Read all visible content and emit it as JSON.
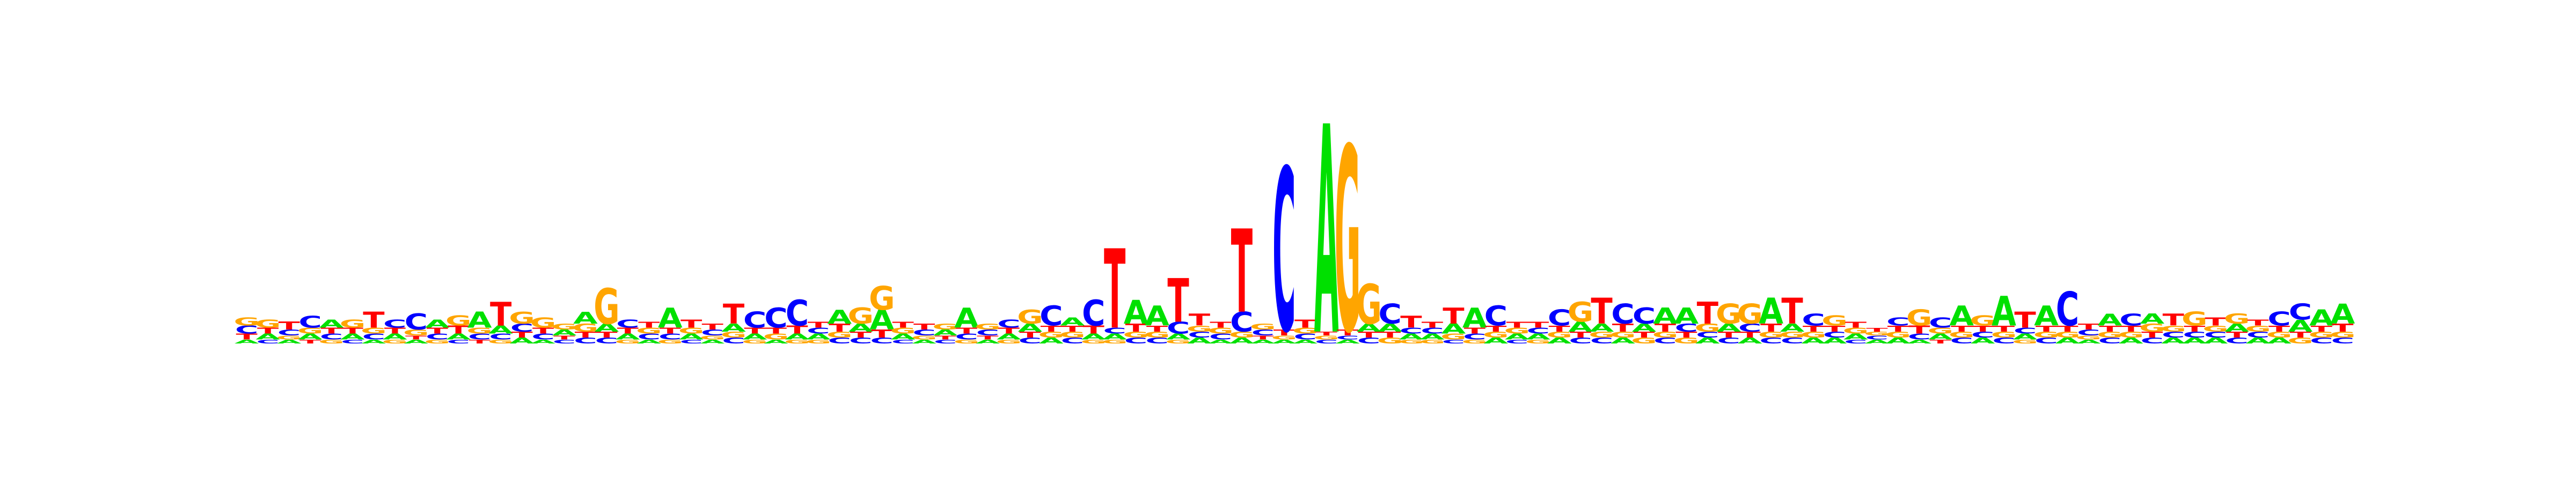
{
  "colors": {
    "A": "#00e000",
    "C": "#0000ff",
    "G": "#ffa500",
    "T": "#ff0000"
  },
  "chart_data": {
    "type": "sequence-logo",
    "alphabet": [
      "A",
      "C",
      "G",
      "T"
    ],
    "ylim": [
      0,
      2
    ],
    "positions": [
      {
        "A": 0.02,
        "C": 0.04,
        "G": 0.04,
        "T": 0.03
      },
      {
        "A": 0.03,
        "C": 0.02,
        "G": 0.04,
        "T": 0.03
      },
      {
        "A": 0.02,
        "C": 0.03,
        "G": 0.02,
        "T": 0.04
      },
      {
        "A": 0.03,
        "C": 0.06,
        "G": 0.03,
        "T": 0.02
      },
      {
        "A": 0.04,
        "C": 0.03,
        "G": 0.02,
        "T": 0.03
      },
      {
        "A": 0.03,
        "C": 0.02,
        "G": 0.04,
        "T": 0.03
      },
      {
        "A": 0.02,
        "C": 0.03,
        "G": 0.03,
        "T": 0.08
      },
      {
        "A": 0.03,
        "C": 0.04,
        "G": 0.02,
        "T": 0.03
      },
      {
        "A": 0.02,
        "C": 0.08,
        "G": 0.03,
        "T": 0.02
      },
      {
        "A": 0.04,
        "C": 0.03,
        "G": 0.02,
        "T": 0.03
      },
      {
        "A": 0.03,
        "C": 0.02,
        "G": 0.05,
        "T": 0.04
      },
      {
        "A": 0.08,
        "C": 0.03,
        "G": 0.03,
        "T": 0.02
      },
      {
        "A": 0.04,
        "C": 0.03,
        "G": 0.02,
        "T": 0.12
      },
      {
        "A": 0.03,
        "C": 0.04,
        "G": 0.06,
        "T": 0.03
      },
      {
        "A": 0.02,
        "C": 0.03,
        "G": 0.05,
        "T": 0.03
      },
      {
        "A": 0.03,
        "C": 0.02,
        "G": 0.03,
        "T": 0.02
      },
      {
        "A": 0.06,
        "C": 0.03,
        "G": 0.04,
        "T": 0.03
      },
      {
        "A": 0.04,
        "C": 0.03,
        "G": 0.18,
        "T": 0.03
      },
      {
        "A": 0.03,
        "C": 0.04,
        "G": 0.02,
        "T": 0.03
      },
      {
        "A": 0.02,
        "C": 0.03,
        "G": 0.03,
        "T": 0.03
      },
      {
        "A": 0.1,
        "C": 0.03,
        "G": 0.02,
        "T": 0.03
      },
      {
        "A": 0.03,
        "C": 0.02,
        "G": 0.03,
        "T": 0.04
      },
      {
        "A": 0.02,
        "C": 0.03,
        "G": 0.02,
        "T": 0.03
      },
      {
        "A": 0.04,
        "C": 0.03,
        "G": 0.03,
        "T": 0.1
      },
      {
        "A": 0.03,
        "C": 0.08,
        "G": 0.02,
        "T": 0.03
      },
      {
        "A": 0.02,
        "C": 0.1,
        "G": 0.03,
        "T": 0.03
      },
      {
        "A": 0.03,
        "C": 0.13,
        "G": 0.02,
        "T": 0.04
      },
      {
        "A": 0.03,
        "C": 0.03,
        "G": 0.02,
        "T": 0.03
      },
      {
        "A": 0.07,
        "C": 0.03,
        "G": 0.03,
        "T": 0.04
      },
      {
        "A": 0.04,
        "C": 0.03,
        "G": 0.08,
        "T": 0.03
      },
      {
        "A": 0.1,
        "C": 0.03,
        "G": 0.12,
        "T": 0.04
      },
      {
        "A": 0.03,
        "C": 0.02,
        "G": 0.03,
        "T": 0.03
      },
      {
        "A": 0.02,
        "C": 0.03,
        "G": 0.02,
        "T": 0.03
      },
      {
        "A": 0.03,
        "C": 0.02,
        "G": 0.03,
        "T": 0.02
      },
      {
        "A": 0.1,
        "C": 0.03,
        "G": 0.02,
        "T": 0.03
      },
      {
        "A": 0.02,
        "C": 0.03,
        "G": 0.03,
        "T": 0.02
      },
      {
        "A": 0.03,
        "C": 0.04,
        "G": 0.02,
        "T": 0.03
      },
      {
        "A": 0.04,
        "C": 0.03,
        "G": 0.07,
        "T": 0.03
      },
      {
        "A": 0.03,
        "C": 0.1,
        "G": 0.03,
        "T": 0.03
      },
      {
        "A": 0.04,
        "C": 0.03,
        "G": 0.03,
        "T": 0.03
      },
      {
        "A": 0.03,
        "C": 0.13,
        "G": 0.02,
        "T": 0.04
      },
      {
        "A": 0.03,
        "C": 0.03,
        "G": 0.02,
        "T": 0.4
      },
      {
        "A": 0.12,
        "C": 0.03,
        "G": 0.03,
        "T": 0.04
      },
      {
        "A": 0.1,
        "C": 0.03,
        "G": 0.03,
        "T": 0.03
      },
      {
        "A": 0.03,
        "C": 0.06,
        "G": 0.02,
        "T": 0.22
      },
      {
        "A": 0.03,
        "C": 0.03,
        "G": 0.03,
        "T": 0.06
      },
      {
        "A": 0.02,
        "C": 0.03,
        "G": 0.03,
        "T": 0.03
      },
      {
        "A": 0.03,
        "C": 0.1,
        "G": 0.03,
        "T": 0.42
      },
      {
        "A": 0.02,
        "C": 0.03,
        "G": 0.03,
        "T": 0.02
      },
      {
        "A": 0.02,
        "C": 0.82,
        "G": 0.02,
        "T": 0.03
      },
      {
        "A": 0.02,
        "C": 0.03,
        "G": 0.03,
        "T": 0.04
      },
      {
        "A": 1.05,
        "C": 0.02,
        "G": 0.02,
        "T": 0.02
      },
      {
        "A": 0.02,
        "C": 0.02,
        "G": 0.93,
        "T": 0.03
      },
      {
        "A": 0.04,
        "C": 0.03,
        "G": 0.2,
        "T": 0.03
      },
      {
        "A": 0.04,
        "C": 0.1,
        "G": 0.03,
        "T": 0.03
      },
      {
        "A": 0.03,
        "C": 0.03,
        "G": 0.02,
        "T": 0.06
      },
      {
        "A": 0.03,
        "C": 0.03,
        "G": 0.02,
        "T": 0.03
      },
      {
        "A": 0.05,
        "C": 0.02,
        "G": 0.03,
        "T": 0.08
      },
      {
        "A": 0.1,
        "C": 0.03,
        "G": 0.02,
        "T": 0.03
      },
      {
        "A": 0.03,
        "C": 0.1,
        "G": 0.03,
        "T": 0.03
      },
      {
        "A": 0.03,
        "C": 0.02,
        "G": 0.03,
        "T": 0.03
      },
      {
        "A": 0.03,
        "C": 0.03,
        "G": 0.02,
        "T": 0.03
      },
      {
        "A": 0.03,
        "C": 0.08,
        "G": 0.03,
        "T": 0.03
      },
      {
        "A": 0.05,
        "C": 0.03,
        "G": 0.1,
        "T": 0.03
      },
      {
        "A": 0.04,
        "C": 0.03,
        "G": 0.03,
        "T": 0.13
      },
      {
        "A": 0.03,
        "C": 0.1,
        "G": 0.03,
        "T": 0.04
      },
      {
        "A": 0.04,
        "C": 0.08,
        "G": 0.03,
        "T": 0.03
      },
      {
        "A": 0.08,
        "C": 0.03,
        "G": 0.03,
        "T": 0.04
      },
      {
        "A": 0.08,
        "C": 0.04,
        "G": 0.03,
        "T": 0.03
      },
      {
        "A": 0.03,
        "C": 0.03,
        "G": 0.04,
        "T": 0.11
      },
      {
        "A": 0.04,
        "C": 0.03,
        "G": 0.1,
        "T": 0.03
      },
      {
        "A": 0.03,
        "C": 0.04,
        "G": 0.1,
        "T": 0.03
      },
      {
        "A": 0.13,
        "C": 0.03,
        "G": 0.03,
        "T": 0.04
      },
      {
        "A": 0.04,
        "C": 0.03,
        "G": 0.03,
        "T": 0.13
      },
      {
        "A": 0.03,
        "C": 0.06,
        "G": 0.03,
        "T": 0.03
      },
      {
        "A": 0.03,
        "C": 0.03,
        "G": 0.05,
        "T": 0.03
      },
      {
        "A": 0.03,
        "C": 0.02,
        "G": 0.03,
        "T": 0.03
      },
      {
        "A": 0.02,
        "C": 0.02,
        "G": 0.02,
        "T": 0.02
      },
      {
        "A": 0.03,
        "C": 0.04,
        "G": 0.03,
        "T": 0.03
      },
      {
        "A": 0.02,
        "C": 0.03,
        "G": 0.08,
        "T": 0.04
      },
      {
        "A": 0.03,
        "C": 0.05,
        "G": 0.03,
        "T": 0.02
      },
      {
        "A": 0.1,
        "C": 0.03,
        "G": 0.03,
        "T": 0.03
      },
      {
        "A": 0.03,
        "C": 0.03,
        "G": 0.05,
        "T": 0.03
      },
      {
        "A": 0.15,
        "C": 0.03,
        "G": 0.03,
        "T": 0.03
      },
      {
        "A": 0.03,
        "C": 0.03,
        "G": 0.02,
        "T": 0.08
      },
      {
        "A": 0.1,
        "C": 0.03,
        "G": 0.03,
        "T": 0.03
      },
      {
        "A": 0.03,
        "C": 0.17,
        "G": 0.03,
        "T": 0.03
      },
      {
        "A": 0.02,
        "C": 0.03,
        "G": 0.02,
        "T": 0.03
      },
      {
        "A": 0.06,
        "C": 0.03,
        "G": 0.03,
        "T": 0.03
      },
      {
        "A": 0.03,
        "C": 0.06,
        "G": 0.03,
        "T": 0.03
      },
      {
        "A": 0.05,
        "C": 0.03,
        "G": 0.04,
        "T": 0.03
      },
      {
        "A": 0.03,
        "C": 0.03,
        "G": 0.03,
        "T": 0.06
      },
      {
        "A": 0.03,
        "C": 0.03,
        "G": 0.07,
        "T": 0.03
      },
      {
        "A": 0.03,
        "C": 0.03,
        "G": 0.03,
        "T": 0.04
      },
      {
        "A": 0.04,
        "C": 0.03,
        "G": 0.05,
        "T": 0.03
      },
      {
        "A": 0.03,
        "C": 0.03,
        "G": 0.03,
        "T": 0.03
      },
      {
        "A": 0.03,
        "C": 0.07,
        "G": 0.03,
        "T": 0.03
      },
      {
        "A": 0.06,
        "C": 0.08,
        "G": 0.03,
        "T": 0.03
      },
      {
        "A": 0.08,
        "C": 0.03,
        "G": 0.03,
        "T": 0.03
      },
      {
        "A": 0.1,
        "C": 0.03,
        "G": 0.03,
        "T": 0.04
      }
    ]
  }
}
